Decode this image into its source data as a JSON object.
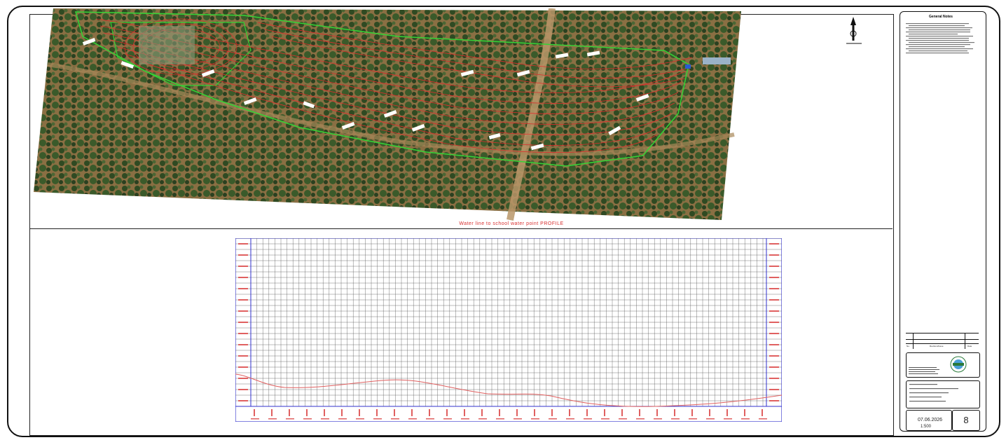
{
  "profile": {
    "title": "Water line to school water point PROFILE"
  },
  "title_block": {
    "notes_heading": "General Notes",
    "revision_header": {
      "no": "No.",
      "description": "Revision/Issue",
      "date": "Date"
    },
    "date": "07.06.2026",
    "scale": "1:500",
    "sheet_number": "8"
  },
  "colors": {
    "contour_red": "#e02c2c",
    "boundary_green": "#35d335",
    "grid_blue": "#3030cc",
    "profile_line": "#e06060"
  }
}
